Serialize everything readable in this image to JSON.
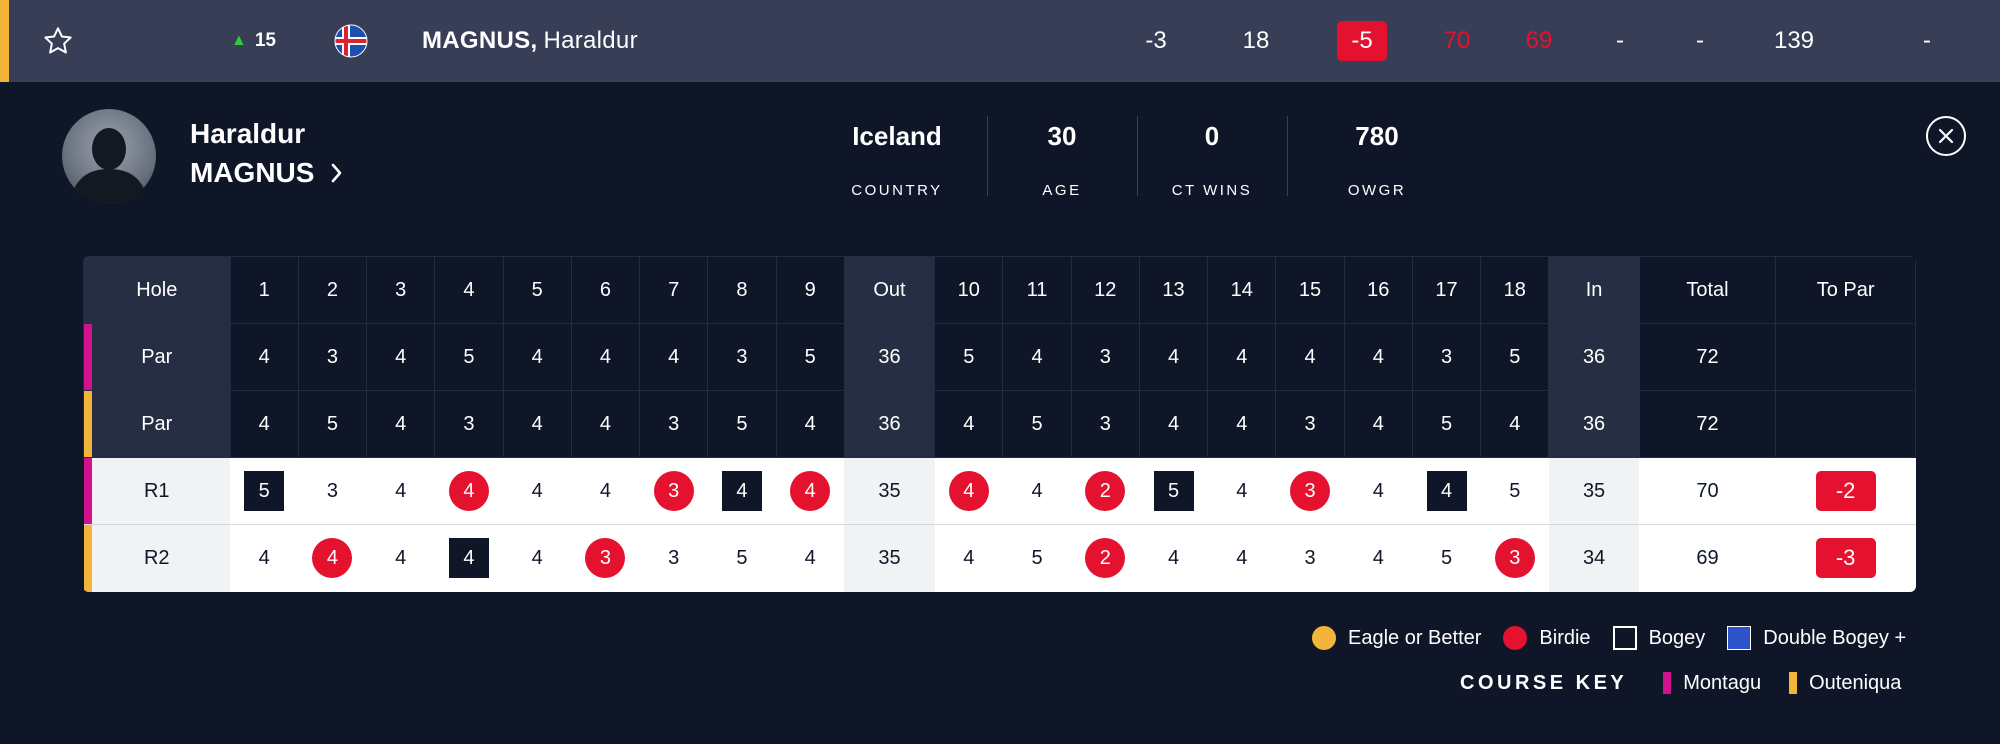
{
  "top_row": {
    "movement": "15",
    "last_name": "MAGNUS,",
    "first_name": "Haraldur",
    "cells": [
      "-3",
      "18",
      "-5",
      "70",
      "69",
      "-",
      "-",
      "139",
      "-"
    ],
    "accent_color": "#f2b53a",
    "movement_color": "#2ecc40",
    "icons": [
      "star-icon",
      "up-arrow-icon",
      "iceland-flag-icon"
    ]
  },
  "player": {
    "first_name": "Haraldur",
    "last_name": "MAGNUS",
    "stats": [
      {
        "value": "Iceland",
        "label": "COUNTRY"
      },
      {
        "value": "30",
        "label": "AGE"
      },
      {
        "value": "0",
        "label": "CT WINS"
      },
      {
        "value": "780",
        "label": "OWGR"
      }
    ]
  },
  "scorecard": {
    "headers": [
      "Hole",
      "1",
      "2",
      "3",
      "4",
      "5",
      "6",
      "7",
      "8",
      "9",
      "Out",
      "10",
      "11",
      "12",
      "13",
      "14",
      "15",
      "16",
      "17",
      "18",
      "In",
      "Total",
      "To Par"
    ],
    "par_montagu": [
      "Par",
      "4",
      "3",
      "4",
      "5",
      "4",
      "4",
      "4",
      "3",
      "5",
      "36",
      "5",
      "4",
      "3",
      "4",
      "4",
      "4",
      "4",
      "3",
      "5",
      "36",
      "72",
      ""
    ],
    "par_outeniqua": [
      "Par",
      "4",
      "5",
      "4",
      "3",
      "4",
      "4",
      "3",
      "5",
      "4",
      "36",
      "4",
      "5",
      "3",
      "4",
      "4",
      "3",
      "4",
      "5",
      "4",
      "36",
      "72",
      ""
    ],
    "r1": [
      "R1",
      "5",
      "3",
      "4",
      "4",
      "4",
      "4",
      "3",
      "4",
      "4",
      "35",
      "4",
      "4",
      "2",
      "5",
      "4",
      "3",
      "4",
      "4",
      "5",
      "35",
      "70",
      "-2"
    ],
    "r1_marks": [
      "",
      "bogey",
      "",
      "",
      "birdie",
      "",
      "",
      "birdie",
      "bogey",
      "birdie",
      "",
      "birdie",
      "",
      "birdie",
      "bogey",
      "",
      "birdie",
      "",
      "bogey",
      "",
      "",
      "",
      "topar"
    ],
    "r2": [
      "R2",
      "4",
      "4",
      "4",
      "4",
      "4",
      "3",
      "3",
      "5",
      "4",
      "35",
      "4",
      "5",
      "2",
      "4",
      "4",
      "3",
      "4",
      "5",
      "3",
      "34",
      "69",
      "-3"
    ],
    "r2_marks": [
      "",
      "",
      "birdie",
      "",
      "bogey",
      "",
      "birdie",
      "",
      "",
      "",
      "",
      "",
      "",
      "birdie",
      "",
      "",
      "",
      "",
      "",
      "birdie",
      "",
      "",
      "topar"
    ]
  },
  "legend": {
    "eagle": "Eagle or Better",
    "birdie": "Birdie",
    "bogey": "Bogey",
    "double_bogey": "Double Bogey +",
    "course_key_title": "COURSE KEY",
    "montagu": "Montagu",
    "outeniqua": "Outeniqua",
    "colors": {
      "eagle": "#f2b53a",
      "birdie": "#e4112f",
      "double_bogey": "#2e52c9",
      "montagu": "#d1128c",
      "outeniqua": "#f2b53a"
    }
  }
}
